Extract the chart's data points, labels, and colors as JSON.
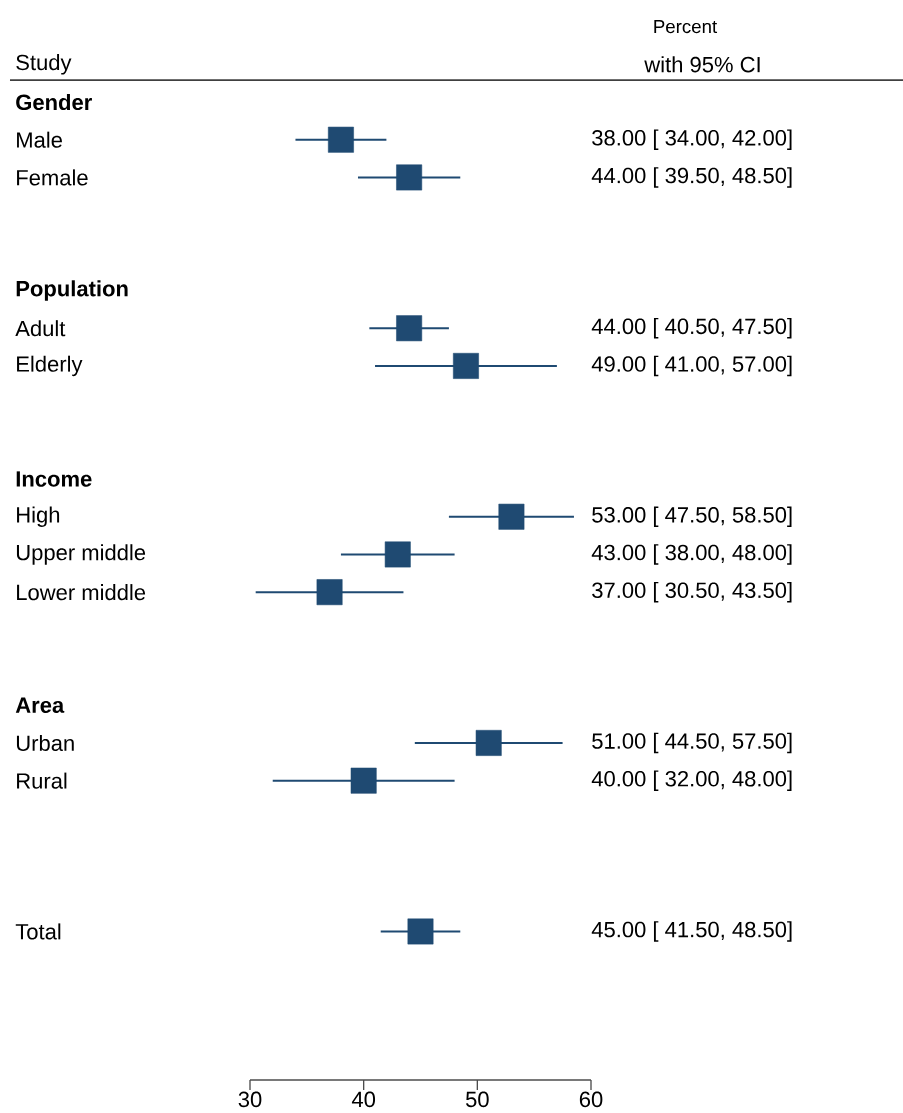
{
  "chart_data": {
    "type": "scatter",
    "orientation": "horizontal",
    "ylabel": "Study",
    "annotations": [
      "Percent",
      "with 95% CI"
    ],
    "categories": [
      "Gender",
      "Male",
      "Female",
      null,
      null,
      "Population",
      "Adult",
      "Elderly",
      null,
      null,
      "Income",
      "High",
      "Upper middle",
      "Lower middle",
      null,
      null,
      "Area",
      "Urban",
      "Rural",
      null,
      null,
      null,
      "Total"
    ],
    "values": [
      null,
      38,
      44,
      null,
      null,
      null,
      44,
      49,
      null,
      null,
      null,
      53,
      43,
      37,
      null,
      null,
      null,
      51,
      40,
      null,
      null,
      null,
      45
    ],
    "errors": [
      null,
      [
        34,
        42
      ],
      [
        39.5,
        48.5
      ],
      null,
      null,
      null,
      [
        40.5,
        47.5
      ],
      [
        41,
        57
      ],
      null,
      null,
      null,
      [
        47.5,
        58.5
      ],
      [
        38,
        48
      ],
      [
        30.5,
        43.5
      ],
      null,
      null,
      null,
      [
        44.5,
        57.5
      ],
      [
        32,
        48
      ],
      null,
      null,
      null,
      [
        41.5,
        48.5
      ]
    ],
    "value_labels": [
      null,
      "38.00 [ 34.00,  42.00]",
      "44.00 [ 39.50,  48.50]",
      null,
      null,
      null,
      "44.00 [ 40.50,  47.50]",
      "49.00 [ 41.00,  57.00]",
      null,
      null,
      null,
      "53.00 [ 47.50,  58.50]",
      "43.00 [ 38.00,  48.00]",
      "37.00 [ 30.50,  43.50]",
      null,
      null,
      null,
      "51.00 [ 44.50,  57.50]",
      "40.00 [ 32.00,  48.00]",
      null,
      null,
      null,
      "45.00 [ 41.50,  48.50]"
    ],
    "color": "#1f4a72",
    "marker": "square",
    "xlim": [
      30,
      60
    ],
    "xticks": [
      30,
      40,
      50,
      60
    ]
  }
}
